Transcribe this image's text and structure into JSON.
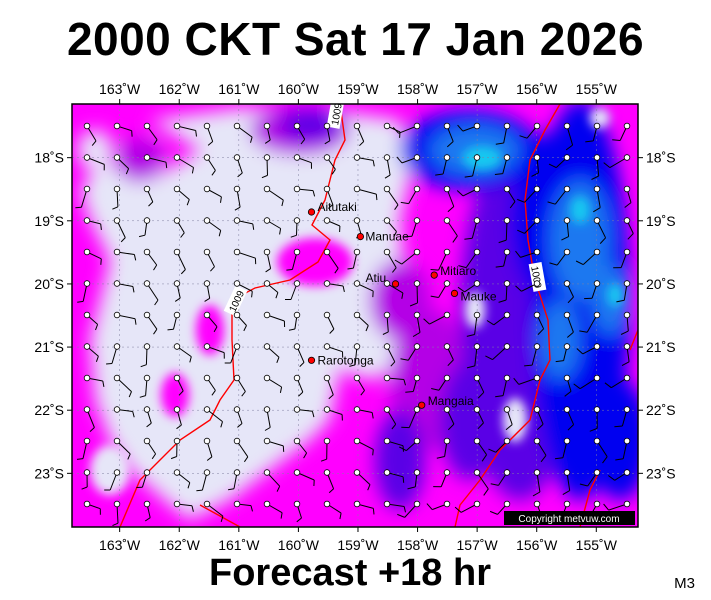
{
  "header": {
    "title": "2000 CKT Sat 17 Jan 2026"
  },
  "footer": {
    "forecast_label": "Forecast +18 hr",
    "model_code": "M3"
  },
  "map": {
    "lon_range": [
      -163.8,
      -154.3
    ],
    "lat_range": [
      -23.85,
      -17.15
    ],
    "lon_ticks": [
      {
        "value": -163,
        "label": "163˚W"
      },
      {
        "value": -162,
        "label": "162˚W"
      },
      {
        "value": -161,
        "label": "161˚W"
      },
      {
        "value": -160,
        "label": "160˚W"
      },
      {
        "value": -159,
        "label": "159˚W"
      },
      {
        "value": -158,
        "label": "158˚W"
      },
      {
        "value": -157,
        "label": "157˚W"
      },
      {
        "value": -156,
        "label": "156˚W"
      },
      {
        "value": -155,
        "label": "155˚W"
      }
    ],
    "lat_ticks": [
      {
        "value": -18,
        "label": "18˚S"
      },
      {
        "value": -19,
        "label": "19˚S"
      },
      {
        "value": -20,
        "label": "20˚S"
      },
      {
        "value": -21,
        "label": "21˚S"
      },
      {
        "value": -22,
        "label": "22˚S"
      },
      {
        "value": -23,
        "label": "23˚S"
      }
    ],
    "places": [
      {
        "name": "Aitutaki",
        "lon": -159.78,
        "lat": -18.86
      },
      {
        "name": "Manuae",
        "lon": -158.96,
        "lat": -19.25
      },
      {
        "name": "Mitiaro",
        "lon": -157.72,
        "lat": -19.86
      },
      {
        "name": "Atiu",
        "lon": -158.37,
        "lat": -20.0
      },
      {
        "name": "Mauke",
        "lon": -157.38,
        "lat": -20.15
      },
      {
        "name": "Rarotonga",
        "lon": -159.78,
        "lat": -21.21
      },
      {
        "name": "Mangaia",
        "lon": -157.93,
        "lat": -21.92
      }
    ],
    "isobar_labels": [
      "1009",
      "1009",
      "1009"
    ],
    "copyright": "Copyright metvuw.com",
    "colors": {
      "calm": "#e6e6f8",
      "light": "#ff00ff",
      "moderate": "#b400e6",
      "fresh": "#5a00e6",
      "strong": "#0000f0",
      "stronger": "#1e78f0",
      "gale": "#14c8f0",
      "isobar": "#ff0000",
      "place_marker": "#ff0000"
    }
  }
}
